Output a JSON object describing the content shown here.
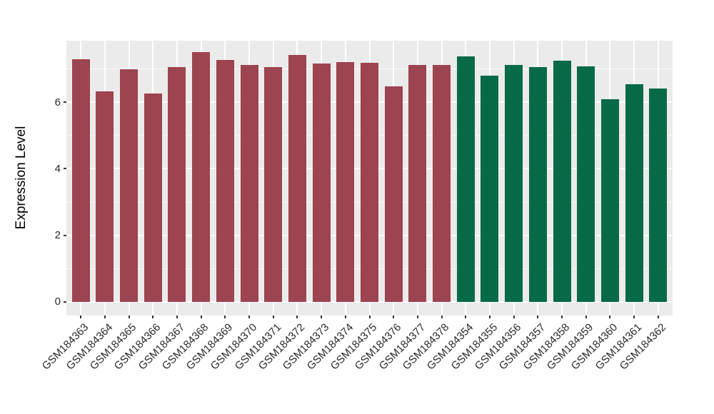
{
  "chart_data": {
    "type": "bar",
    "title": "",
    "xlabel": "",
    "ylabel": "Expression Level",
    "categories": [
      "GSM184363",
      "GSM184364",
      "GSM184365",
      "GSM184366",
      "GSM184367",
      "GSM184368",
      "GSM184369",
      "GSM184370",
      "GSM184371",
      "GSM184372",
      "GSM184373",
      "GSM184374",
      "GSM184375",
      "GSM184376",
      "GSM184377",
      "GSM184378",
      "GSM184354",
      "GSM184355",
      "GSM184356",
      "GSM184357",
      "GSM184358",
      "GSM184359",
      "GSM184360",
      "GSM184361",
      "GSM184362"
    ],
    "values": [
      7.3,
      6.33,
      7.0,
      6.26,
      7.06,
      7.5,
      7.28,
      7.12,
      7.05,
      7.42,
      7.16,
      7.2,
      7.18,
      6.48,
      7.12,
      7.13,
      7.37,
      6.8,
      7.13,
      7.05,
      7.24,
      7.08,
      6.09,
      6.55,
      6.42
    ],
    "groups": [
      "A",
      "A",
      "A",
      "A",
      "A",
      "A",
      "A",
      "A",
      "A",
      "A",
      "A",
      "A",
      "A",
      "A",
      "A",
      "A",
      "B",
      "B",
      "B",
      "B",
      "B",
      "B",
      "B",
      "B",
      "B"
    ],
    "group_colors": {
      "A": "#9C4450",
      "B": "#066A47"
    },
    "ylim": [
      -0.41,
      7.85
    ],
    "yticks": [
      0,
      2,
      4,
      6
    ],
    "yticks_minor": [
      1,
      3,
      5,
      7
    ],
    "grid": true,
    "legend": "none",
    "panel_bg": "#EBEBEB",
    "gridline_color": "#FFFFFF",
    "axis_text_color": "#2b2b2b"
  }
}
